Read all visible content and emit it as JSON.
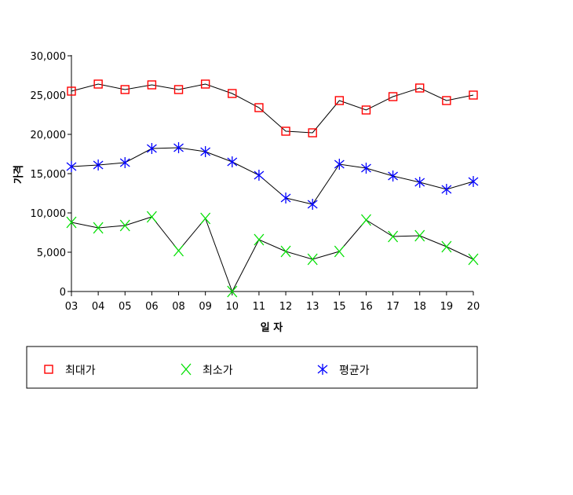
{
  "chart_data": {
    "type": "line",
    "title": "",
    "xlabel": "일 자",
    "ylabel": "가격",
    "categories": [
      "03",
      "04",
      "05",
      "06",
      "08",
      "09",
      "10",
      "11",
      "12",
      "13",
      "15",
      "16",
      "17",
      "18",
      "19",
      "20"
    ],
    "ylim": [
      0,
      30000
    ],
    "yticks": [
      0,
      5000,
      10000,
      15000,
      20000,
      25000,
      30000
    ],
    "ytick_labels": [
      "0",
      "5,000",
      "10,000",
      "15,000",
      "20,000",
      "25,000",
      "30,000"
    ],
    "grid": false,
    "legend_position": "bottom",
    "series": [
      {
        "name": "최대가",
        "marker": "square",
        "color": "#ff0000",
        "values": [
          25500,
          26400,
          25700,
          26300,
          25700,
          26400,
          25200,
          23400,
          20400,
          20200,
          24300,
          23100,
          24800,
          25900,
          24300,
          25000
        ]
      },
      {
        "name": "최소가",
        "marker": "x",
        "color": "#00e000",
        "values": [
          8800,
          8100,
          8400,
          9500,
          5200,
          9300,
          0,
          6600,
          5100,
          4100,
          5100,
          9100,
          7000,
          7100,
          5700,
          4100
        ]
      },
      {
        "name": "평균가",
        "marker": "asterisk",
        "color": "#0000ff",
        "values": [
          15900,
          16100,
          16400,
          18200,
          18300,
          17800,
          16500,
          14800,
          11900,
          11100,
          16200,
          15700,
          14700,
          13900,
          13000,
          14000
        ]
      }
    ]
  }
}
